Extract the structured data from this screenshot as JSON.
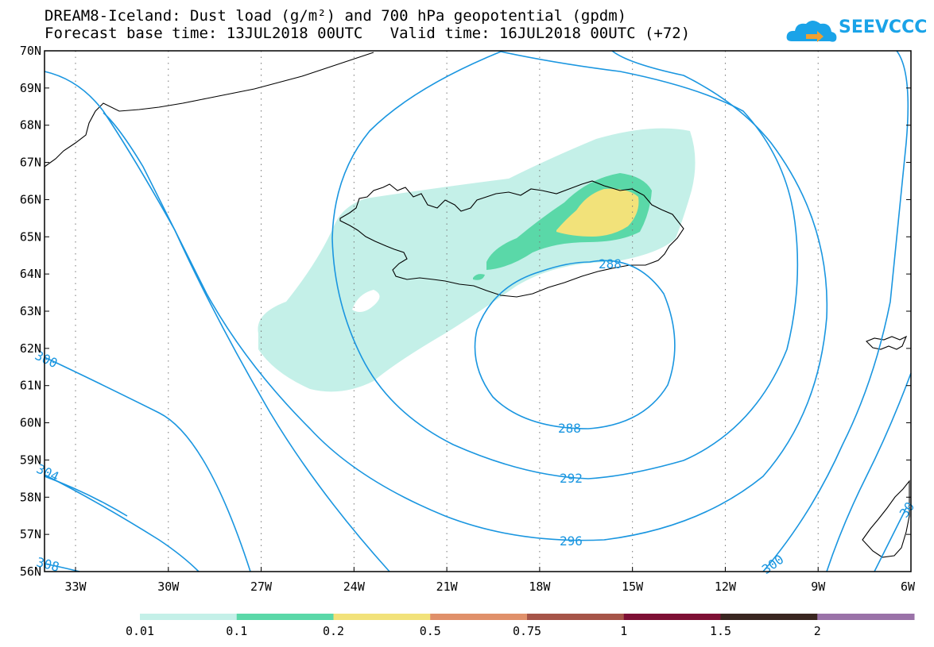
{
  "title": {
    "line1": "DREAM8-Iceland: Dust load (g/m²) and 700 hPa geopotential (gpdm)",
    "line2": "Forecast base time: 13JUL2018 00UTC   Valid time: 16JUL2018 00UTC (+72)"
  },
  "logo": {
    "text": "SEEVCCC",
    "icon": "cloud-logo-icon",
    "color": "#1aa3e8"
  },
  "map": {
    "lat_labels": [
      "70N",
      "69N",
      "68N",
      "67N",
      "66N",
      "65N",
      "64N",
      "63N",
      "62N",
      "61N",
      "60N",
      "59N",
      "58N",
      "57N",
      "56N"
    ],
    "lon_labels": [
      "33W",
      "30W",
      "27W",
      "24W",
      "21W",
      "18W",
      "15W",
      "12W",
      "9W",
      "6W"
    ],
    "contour_labels": [
      "288",
      "288",
      "292",
      "296",
      "300",
      "300",
      "304",
      "308",
      "30"
    ],
    "contour_color": "#1a96e0"
  },
  "colorbar": {
    "colors": [
      "#c4f0e8",
      "#5ad8a8",
      "#f2e27a",
      "#e0906a",
      "#a65448",
      "#7e1035",
      "#3a2620",
      "#9a72a8"
    ],
    "labels": [
      "0.01",
      "0.1",
      "0.2",
      "0.5",
      "0.75",
      "1",
      "1.5",
      "2"
    ]
  }
}
